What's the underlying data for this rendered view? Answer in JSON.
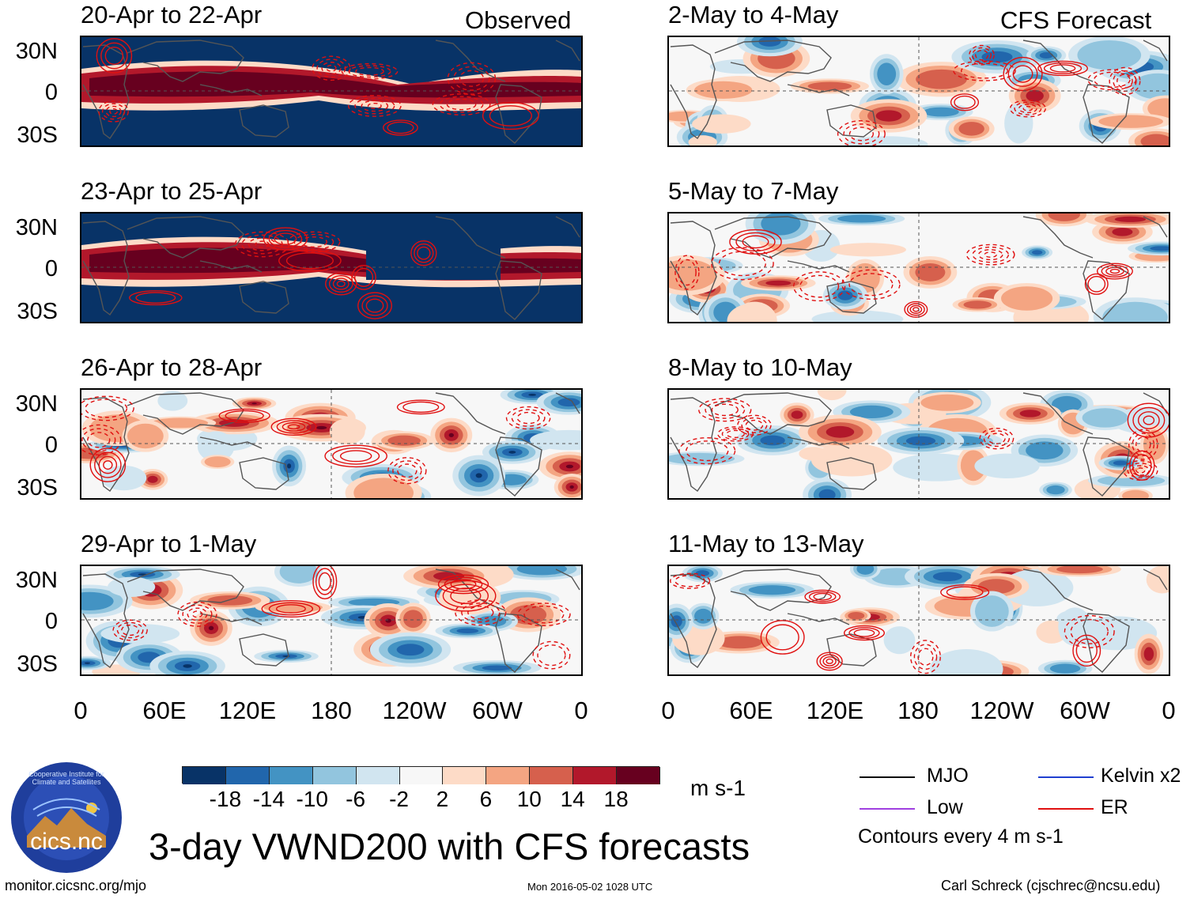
{
  "header": {
    "observed_label": "Observed",
    "forecast_label": "CFS Forecast"
  },
  "panels": {
    "observed": [
      {
        "title": "20-Apr to 22-Apr",
        "state": "strong"
      },
      {
        "title": "23-Apr to 25-Apr",
        "state": "strong"
      },
      {
        "title": "26-Apr to 28-Apr",
        "state": "anomaly"
      },
      {
        "title": "29-Apr to 1-May",
        "state": "anomaly"
      }
    ],
    "forecast": [
      {
        "title": "2-May to 4-May"
      },
      {
        "title": "5-May to 7-May"
      },
      {
        "title": "8-May to 10-May"
      },
      {
        "title": "11-May to 13-May"
      }
    ]
  },
  "axes": {
    "y_ticks": [
      "30N",
      "0",
      "30S"
    ],
    "x_ticks": [
      "0",
      "60E",
      "120E",
      "180",
      "120W",
      "60W",
      "0"
    ]
  },
  "colorbar": {
    "labels": [
      "-18",
      "-14",
      "-10",
      "-6",
      "-2",
      "2",
      "6",
      "10",
      "14",
      "18"
    ],
    "colors": [
      "#083367",
      "#2166ac",
      "#4393c3",
      "#92c5de",
      "#d1e5f0",
      "#f7f7f7",
      "#fddbc7",
      "#f4a582",
      "#d6604d",
      "#b2182b",
      "#67001f"
    ],
    "units": "m s-1"
  },
  "legend": {
    "mjo": {
      "label": "MJO",
      "color": "#000000"
    },
    "kelvin": {
      "label": "Kelvin x2",
      "color": "#1f3fd0"
    },
    "low": {
      "label": "Low",
      "color": "#a040e0"
    },
    "er": {
      "label": "ER",
      "color": "#e01010"
    },
    "contours_note": "Contours every 4 m s-1"
  },
  "logo": {
    "text": "cics.nc",
    "ring_text": "Cooperative Institute for Climate and Satellites"
  },
  "footer": {
    "main_title": "3-day VWND200 with CFS forecasts",
    "url": "monitor.cicsnc.org/mjo",
    "timestamp": "Mon 2016-05-02 1028 UTC",
    "credit": "Carl Schreck (cjschrec@ncsu.edu)"
  }
}
